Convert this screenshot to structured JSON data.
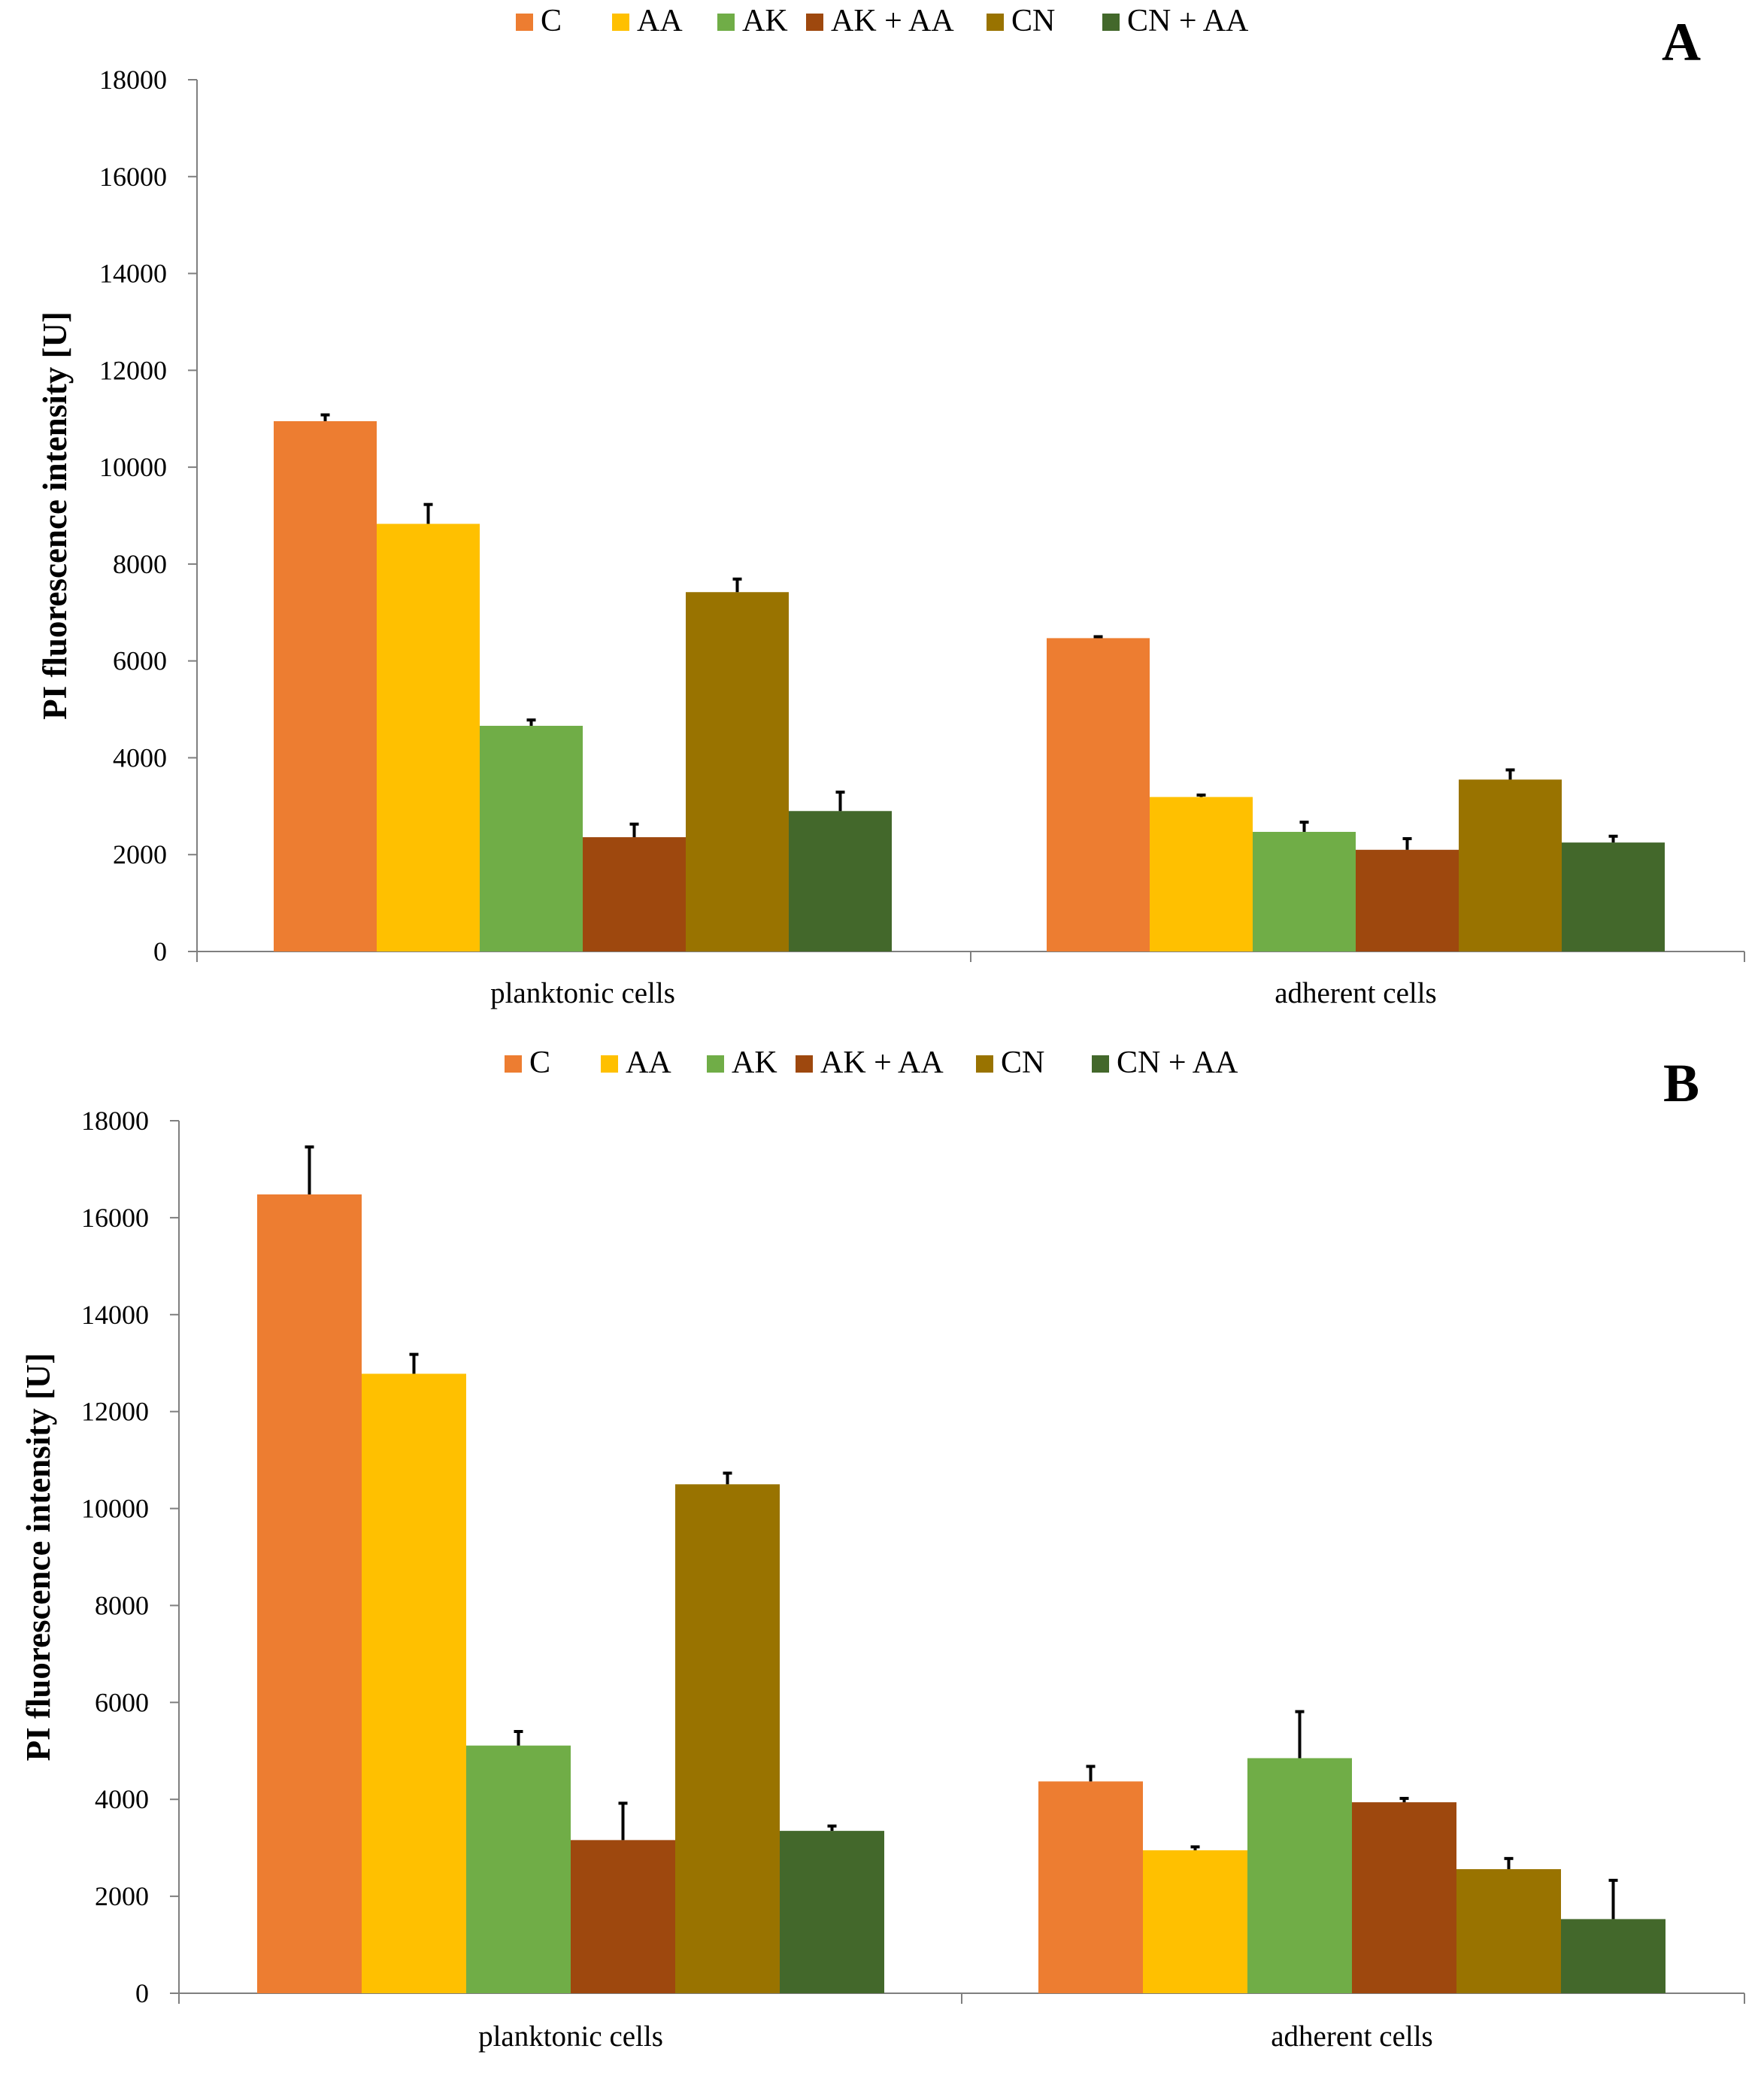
{
  "colors": {
    "C": "#ED7D31",
    "AA": "#FFC000",
    "AK": "#70AD47",
    "AK + AA": "#9E480E",
    "CN": "#997300",
    "CN + AA": "#43682B"
  },
  "chart_data": [
    {
      "type": "bar",
      "panel": "A",
      "categories": [
        "planktonic cells",
        "adherent cells"
      ],
      "ylabel": "PI fluorescence intensity [U]",
      "ylim": [
        0,
        18000
      ],
      "yticks": [
        "0",
        "2000",
        "4000",
        "6000",
        "8000",
        "10000",
        "12000",
        "14000",
        "16000",
        "18000"
      ],
      "legend_position": "top",
      "series": [
        {
          "name": "C",
          "values": [
            10950,
            6470
          ],
          "errors": [
            130,
            30
          ]
        },
        {
          "name": "AA",
          "values": [
            8830,
            3190
          ],
          "errors": [
            400,
            40
          ]
        },
        {
          "name": "AK",
          "values": [
            4660,
            2470
          ],
          "errors": [
            120,
            200
          ]
        },
        {
          "name": "AK + AA",
          "values": [
            2360,
            2100
          ],
          "errors": [
            270,
            230
          ]
        },
        {
          "name": "CN",
          "values": [
            7420,
            3550
          ],
          "errors": [
            270,
            200
          ]
        },
        {
          "name": "CN + AA",
          "values": [
            2900,
            2250
          ],
          "errors": [
            390,
            130
          ]
        }
      ]
    },
    {
      "type": "bar",
      "panel": "B",
      "categories": [
        "planktonic cells",
        "adherent cells"
      ],
      "ylabel": "PI fluorescence intensity [U]",
      "ylim": [
        0,
        18000
      ],
      "yticks": [
        "0",
        "2000",
        "4000",
        "6000",
        "8000",
        "10000",
        "12000",
        "14000",
        "16000",
        "18000"
      ],
      "legend_position": "top",
      "series": [
        {
          "name": "C",
          "values": [
            16480,
            4370
          ],
          "errors": [
            980,
            310
          ]
        },
        {
          "name": "AA",
          "values": [
            12780,
            2950
          ],
          "errors": [
            400,
            70
          ]
        },
        {
          "name": "AK",
          "values": [
            5110,
            4850
          ],
          "errors": [
            290,
            960
          ]
        },
        {
          "name": "AK + AA",
          "values": [
            3160,
            3940
          ],
          "errors": [
            760,
            80
          ]
        },
        {
          "name": "CN",
          "values": [
            10500,
            2560
          ],
          "errors": [
            230,
            220
          ]
        },
        {
          "name": "CN + AA",
          "values": [
            3350,
            1530
          ],
          "errors": [
            100,
            800
          ]
        }
      ]
    }
  ]
}
